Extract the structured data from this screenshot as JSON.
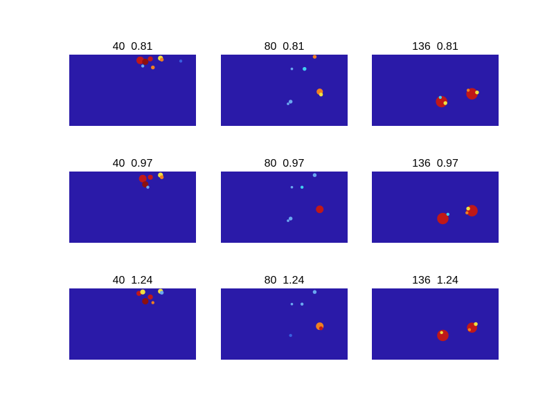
{
  "figure": {
    "background_color": "#ffffff",
    "field_color": "#2a1aa8"
  },
  "chart_data": {
    "type": "heatmap",
    "layout": "3x3 grid of small image panels",
    "axes_visible": false,
    "colormap": "jet",
    "colors": {
      "background": "#2a1aa8",
      "red": "#c01818",
      "dark_red": "#8c1010",
      "orange": "#f08020",
      "yellow": "#f0e040",
      "cyan": "#40d0f0",
      "light_blue": "#6aa8f0",
      "blue": "#3860e0"
    },
    "panels": [
      {
        "title": "40  0.81",
        "blobs": [
          {
            "x": 0.56,
            "y": 0.08,
            "size": 0.03,
            "color": "red"
          },
          {
            "x": 0.6,
            "y": 0.1,
            "size": 0.025,
            "color": "dark_red"
          },
          {
            "x": 0.64,
            "y": 0.06,
            "size": 0.02,
            "color": "red"
          },
          {
            "x": 0.72,
            "y": 0.05,
            "size": 0.02,
            "color": "yellow"
          },
          {
            "x": 0.73,
            "y": 0.07,
            "size": 0.015,
            "color": "orange"
          },
          {
            "x": 0.66,
            "y": 0.18,
            "size": 0.015,
            "color": "orange"
          },
          {
            "x": 0.58,
            "y": 0.16,
            "size": 0.012,
            "color": "light_blue"
          },
          {
            "x": 0.88,
            "y": 0.09,
            "size": 0.012,
            "color": "blue"
          }
        ]
      },
      {
        "title": "80  0.81",
        "blobs": [
          {
            "x": 0.74,
            "y": 0.03,
            "size": 0.015,
            "color": "orange"
          },
          {
            "x": 0.66,
            "y": 0.2,
            "size": 0.015,
            "color": "cyan"
          },
          {
            "x": 0.56,
            "y": 0.2,
            "size": 0.01,
            "color": "light_blue"
          },
          {
            "x": 0.78,
            "y": 0.52,
            "size": 0.025,
            "color": "orange"
          },
          {
            "x": 0.79,
            "y": 0.56,
            "size": 0.015,
            "color": "yellow"
          },
          {
            "x": 0.55,
            "y": 0.66,
            "size": 0.015,
            "color": "light_blue"
          },
          {
            "x": 0.53,
            "y": 0.69,
            "size": 0.01,
            "color": "light_blue"
          }
        ]
      },
      {
        "title": "136  0.81",
        "blobs": [
          {
            "x": 0.55,
            "y": 0.66,
            "size": 0.045,
            "color": "red"
          },
          {
            "x": 0.58,
            "y": 0.68,
            "size": 0.015,
            "color": "yellow"
          },
          {
            "x": 0.54,
            "y": 0.6,
            "size": 0.012,
            "color": "cyan"
          },
          {
            "x": 0.79,
            "y": 0.55,
            "size": 0.045,
            "color": "red"
          },
          {
            "x": 0.83,
            "y": 0.53,
            "size": 0.015,
            "color": "yellow"
          },
          {
            "x": 0.76,
            "y": 0.5,
            "size": 0.012,
            "color": "orange"
          }
        ]
      },
      {
        "title": "40  0.97",
        "blobs": [
          {
            "x": 0.58,
            "y": 0.1,
            "size": 0.03,
            "color": "red"
          },
          {
            "x": 0.6,
            "y": 0.18,
            "size": 0.025,
            "color": "dark_red"
          },
          {
            "x": 0.64,
            "y": 0.08,
            "size": 0.02,
            "color": "red"
          },
          {
            "x": 0.72,
            "y": 0.05,
            "size": 0.02,
            "color": "yellow"
          },
          {
            "x": 0.73,
            "y": 0.08,
            "size": 0.015,
            "color": "orange"
          },
          {
            "x": 0.62,
            "y": 0.22,
            "size": 0.012,
            "color": "light_blue"
          }
        ]
      },
      {
        "title": "80  0.97",
        "blobs": [
          {
            "x": 0.74,
            "y": 0.05,
            "size": 0.015,
            "color": "light_blue"
          },
          {
            "x": 0.64,
            "y": 0.22,
            "size": 0.012,
            "color": "cyan"
          },
          {
            "x": 0.56,
            "y": 0.22,
            "size": 0.01,
            "color": "light_blue"
          },
          {
            "x": 0.78,
            "y": 0.53,
            "size": 0.03,
            "color": "red"
          },
          {
            "x": 0.55,
            "y": 0.66,
            "size": 0.015,
            "color": "light_blue"
          },
          {
            "x": 0.53,
            "y": 0.69,
            "size": 0.01,
            "color": "light_blue"
          }
        ]
      },
      {
        "title": "136  0.97",
        "blobs": [
          {
            "x": 0.56,
            "y": 0.66,
            "size": 0.045,
            "color": "red"
          },
          {
            "x": 0.6,
            "y": 0.6,
            "size": 0.012,
            "color": "cyan"
          },
          {
            "x": 0.79,
            "y": 0.55,
            "size": 0.045,
            "color": "red"
          },
          {
            "x": 0.76,
            "y": 0.52,
            "size": 0.015,
            "color": "yellow"
          },
          {
            "x": 0.75,
            "y": 0.58,
            "size": 0.012,
            "color": "orange"
          }
        ]
      },
      {
        "title": "40  1.24",
        "blobs": [
          {
            "x": 0.55,
            "y": 0.07,
            "size": 0.02,
            "color": "red"
          },
          {
            "x": 0.58,
            "y": 0.05,
            "size": 0.02,
            "color": "yellow"
          },
          {
            "x": 0.6,
            "y": 0.18,
            "size": 0.025,
            "color": "dark_red"
          },
          {
            "x": 0.64,
            "y": 0.12,
            "size": 0.02,
            "color": "red"
          },
          {
            "x": 0.72,
            "y": 0.04,
            "size": 0.02,
            "color": "yellow"
          },
          {
            "x": 0.73,
            "y": 0.06,
            "size": 0.015,
            "color": "light_blue"
          },
          {
            "x": 0.66,
            "y": 0.2,
            "size": 0.012,
            "color": "orange"
          }
        ]
      },
      {
        "title": "80  1.24",
        "blobs": [
          {
            "x": 0.74,
            "y": 0.05,
            "size": 0.015,
            "color": "light_blue"
          },
          {
            "x": 0.64,
            "y": 0.22,
            "size": 0.012,
            "color": "light_blue"
          },
          {
            "x": 0.56,
            "y": 0.22,
            "size": 0.01,
            "color": "light_blue"
          },
          {
            "x": 0.78,
            "y": 0.53,
            "size": 0.03,
            "color": "orange"
          },
          {
            "x": 0.79,
            "y": 0.56,
            "size": 0.015,
            "color": "red"
          },
          {
            "x": 0.55,
            "y": 0.66,
            "size": 0.012,
            "color": "blue"
          }
        ]
      },
      {
        "title": "136  1.24",
        "blobs": [
          {
            "x": 0.56,
            "y": 0.66,
            "size": 0.045,
            "color": "red"
          },
          {
            "x": 0.55,
            "y": 0.62,
            "size": 0.012,
            "color": "yellow"
          },
          {
            "x": 0.79,
            "y": 0.55,
            "size": 0.04,
            "color": "red"
          },
          {
            "x": 0.82,
            "y": 0.5,
            "size": 0.015,
            "color": "yellow"
          },
          {
            "x": 0.77,
            "y": 0.58,
            "size": 0.012,
            "color": "orange"
          }
        ]
      }
    ]
  }
}
